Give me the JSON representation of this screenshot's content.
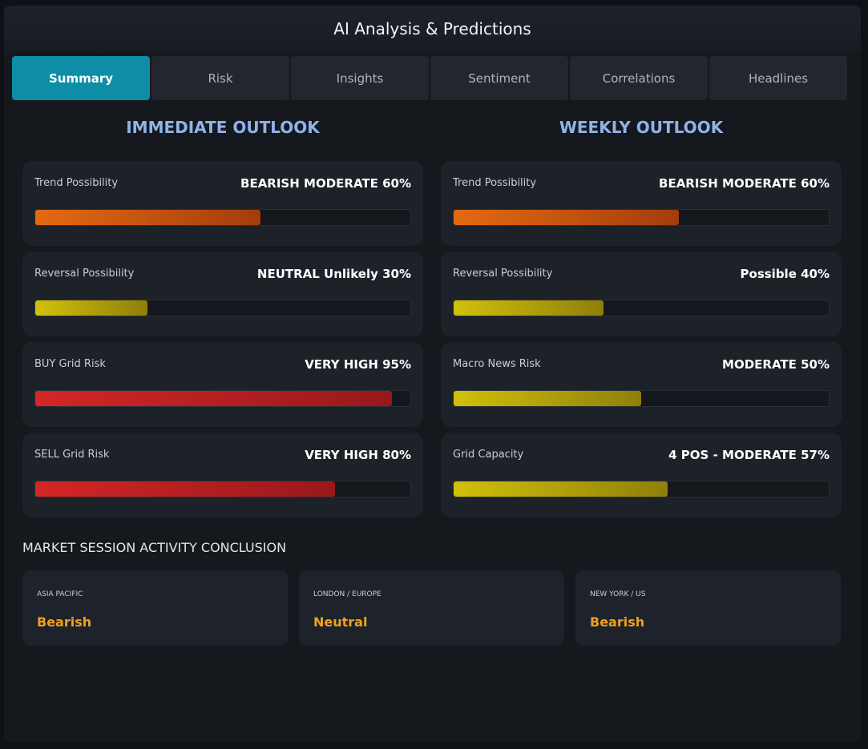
{
  "header": {
    "title": "AI Analysis & Predictions"
  },
  "tabs": [
    {
      "label": "Summary",
      "active": true
    },
    {
      "label": "Risk",
      "active": false
    },
    {
      "label": "Insights",
      "active": false
    },
    {
      "label": "Sentiment",
      "active": false
    },
    {
      "label": "Correlations",
      "active": false
    },
    {
      "label": "Headlines",
      "active": false
    }
  ],
  "immediate": {
    "title": "IMMEDIATE OUTLOOK",
    "cards": [
      {
        "label": "Trend Possibility",
        "value": "BEARISH MODERATE 60%",
        "level": 0.6,
        "color": "#e36a12"
      },
      {
        "label": "Reversal Possibility",
        "value": "NEUTRAL Unlikely 30%",
        "level": 0.3,
        "color": "#d1c00a"
      },
      {
        "label": "BUY Grid Risk",
        "value": "VERY HIGH 95%",
        "level": 0.95,
        "color": "#d42626"
      },
      {
        "label": "SELL Grid Risk",
        "value": "VERY HIGH 80%",
        "level": 0.8,
        "color": "#d42626"
      }
    ]
  },
  "weekly": {
    "title": "WEEKLY OUTLOOK",
    "cards": [
      {
        "label": "Trend Possibility",
        "value": "BEARISH MODERATE 60%",
        "level": 0.6,
        "color": "#e36a12"
      },
      {
        "label": "Reversal Possibility",
        "value": "Possible 40%",
        "level": 0.4,
        "color": "#d1c00a"
      },
      {
        "label": "Macro News Risk",
        "value": "MODERATE 50%",
        "level": 0.5,
        "color": "#d1c00a"
      },
      {
        "label": "Grid Capacity",
        "value": "4 POS - MODERATE 57%",
        "level": 0.57,
        "color": "#d1c00a"
      }
    ]
  },
  "sessions": {
    "heading": "MARKET SESSION ACTIVITY CONCLUSION",
    "items": [
      {
        "name": "ASIA PACIFIC",
        "state": "Bearish"
      },
      {
        "name": "LONDON / EUROPE",
        "state": "Neutral"
      },
      {
        "name": "NEW YORK / US",
        "state": "Bearish"
      }
    ]
  }
}
